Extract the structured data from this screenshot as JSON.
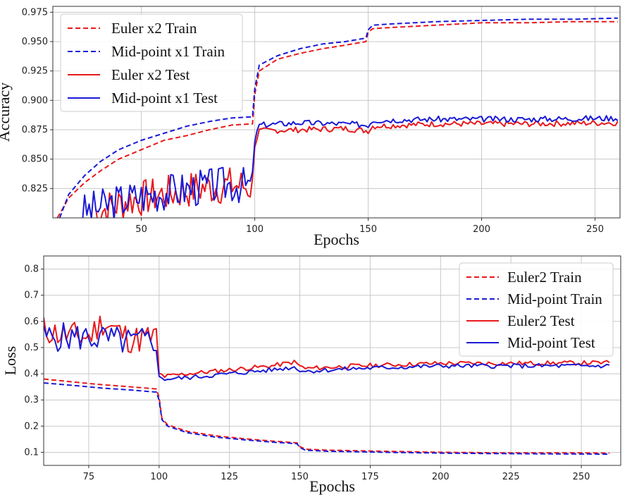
{
  "chart_data": [
    {
      "type": "line",
      "title": "",
      "xlabel": "Epochs",
      "ylabel": "Accuracy",
      "xlim": [
        11,
        261
      ],
      "ylim": [
        0.8,
        0.98
      ],
      "xticks": [
        50,
        100,
        150,
        200,
        250
      ],
      "yticks": [
        0.825,
        0.85,
        0.875,
        0.9,
        0.925,
        0.95,
        0.975
      ],
      "xtick_labels": [
        "50",
        "100",
        "150",
        "200",
        "250"
      ],
      "ytick_labels": [
        "0.825",
        "0.850",
        "0.875",
        "0.900",
        "0.925",
        "0.950",
        "0.975"
      ],
      "grid": true,
      "legend_position": "top-left",
      "series": [
        {
          "name": "Euler x2 Train",
          "color": "#e8191c",
          "dash": true,
          "points": [
            [
              13,
              0.8
            ],
            [
              18,
              0.817
            ],
            [
              25,
              0.83
            ],
            [
              32,
              0.84
            ],
            [
              40,
              0.85
            ],
            [
              50,
              0.858
            ],
            [
              60,
              0.866
            ],
            [
              70,
              0.87
            ],
            [
              80,
              0.875
            ],
            [
              90,
              0.879
            ],
            [
              99,
              0.88
            ],
            [
              100,
              0.905
            ],
            [
              102,
              0.925
            ],
            [
              110,
              0.935
            ],
            [
              120,
              0.94
            ],
            [
              130,
              0.944
            ],
            [
              140,
              0.947
            ],
            [
              149,
              0.95
            ],
            [
              150,
              0.958
            ],
            [
              152,
              0.961
            ],
            [
              160,
              0.962
            ],
            [
              180,
              0.964
            ],
            [
              200,
              0.966
            ],
            [
              220,
              0.966
            ],
            [
              240,
              0.967
            ],
            [
              260,
              0.967
            ]
          ]
        },
        {
          "name": "Mid-point x1 Train",
          "color": "#1a1ad6",
          "dash": true,
          "points": [
            [
              14,
              0.8
            ],
            [
              18,
              0.82
            ],
            [
              25,
              0.836
            ],
            [
              32,
              0.848
            ],
            [
              40,
              0.858
            ],
            [
              50,
              0.866
            ],
            [
              60,
              0.872
            ],
            [
              70,
              0.878
            ],
            [
              80,
              0.882
            ],
            [
              90,
              0.885
            ],
            [
              99,
              0.886
            ],
            [
              100,
              0.91
            ],
            [
              102,
              0.93
            ],
            [
              110,
              0.938
            ],
            [
              120,
              0.944
            ],
            [
              130,
              0.948
            ],
            [
              140,
              0.95
            ],
            [
              149,
              0.953
            ],
            [
              150,
              0.96
            ],
            [
              152,
              0.964
            ],
            [
              160,
              0.965
            ],
            [
              180,
              0.967
            ],
            [
              200,
              0.968
            ],
            [
              220,
              0.969
            ],
            [
              240,
              0.969
            ],
            [
              260,
              0.97
            ]
          ]
        },
        {
          "name": "Euler x2 Test",
          "color": "#e8191c",
          "dash": false,
          "noise": 0.01,
          "seed": 7,
          "points": [
            [
              30,
              0.805
            ],
            [
              45,
              0.815
            ],
            [
              60,
              0.82
            ],
            [
              75,
              0.825
            ],
            [
              90,
              0.828
            ],
            [
              99,
              0.826
            ],
            [
              100,
              0.862
            ],
            [
              102,
              0.874
            ],
            [
              120,
              0.875
            ],
            [
              140,
              0.876
            ],
            [
              150,
              0.874
            ],
            [
              152,
              0.878
            ],
            [
              180,
              0.88
            ],
            [
              220,
              0.88
            ],
            [
              260,
              0.881
            ]
          ]
        },
        {
          "name": "Mid-point x1 Test",
          "color": "#1a1ad6",
          "dash": false,
          "noise": 0.01,
          "seed": 3,
          "points": [
            [
              24,
              0.805
            ],
            [
              45,
              0.817
            ],
            [
              60,
              0.822
            ],
            [
              75,
              0.826
            ],
            [
              90,
              0.829
            ],
            [
              99,
              0.827
            ],
            [
              100,
              0.866
            ],
            [
              102,
              0.879
            ],
            [
              120,
              0.881
            ],
            [
              140,
              0.88
            ],
            [
              150,
              0.879
            ],
            [
              152,
              0.883
            ],
            [
              180,
              0.884
            ],
            [
              220,
              0.884
            ],
            [
              260,
              0.885
            ]
          ]
        }
      ]
    },
    {
      "type": "line",
      "title": "",
      "xlabel": "Epochs",
      "ylabel": "Loss",
      "xlim": [
        59,
        264
      ],
      "ylim": [
        0.05,
        0.85
      ],
      "xticks": [
        75,
        100,
        125,
        150,
        175,
        200,
        225,
        250
      ],
      "yticks": [
        0.1,
        0.2,
        0.3,
        0.4,
        0.5,
        0.6,
        0.7,
        0.8
      ],
      "xtick_labels": [
        "75",
        "100",
        "125",
        "150",
        "175",
        "200",
        "225",
        "250"
      ],
      "ytick_labels": [
        "0.1",
        "0.2",
        "0.3",
        "0.4",
        "0.5",
        "0.6",
        "0.7",
        "0.8"
      ],
      "grid": true,
      "legend_position": "top-right",
      "series": [
        {
          "name": "Euler2 Train",
          "color": "#e8191c",
          "dash": true,
          "points": [
            [
              59,
              0.38
            ],
            [
              70,
              0.368
            ],
            [
              80,
              0.358
            ],
            [
              90,
              0.35
            ],
            [
              99,
              0.342
            ],
            [
              100,
              0.31
            ],
            [
              101,
              0.23
            ],
            [
              103,
              0.205
            ],
            [
              110,
              0.18
            ],
            [
              120,
              0.163
            ],
            [
              130,
              0.152
            ],
            [
              140,
              0.143
            ],
            [
              149,
              0.136
            ],
            [
              150,
              0.122
            ],
            [
              152,
              0.112
            ],
            [
              160,
              0.108
            ],
            [
              180,
              0.104
            ],
            [
              200,
              0.1
            ],
            [
              220,
              0.098
            ],
            [
              240,
              0.098
            ],
            [
              260,
              0.097
            ]
          ]
        },
        {
          "name": "Mid-point Train",
          "color": "#1a1ad6",
          "dash": true,
          "points": [
            [
              59,
              0.365
            ],
            [
              70,
              0.355
            ],
            [
              80,
              0.345
            ],
            [
              90,
              0.338
            ],
            [
              99,
              0.33
            ],
            [
              100,
              0.3
            ],
            [
              101,
              0.225
            ],
            [
              103,
              0.2
            ],
            [
              110,
              0.175
            ],
            [
              120,
              0.158
            ],
            [
              130,
              0.148
            ],
            [
              140,
              0.139
            ],
            [
              149,
              0.133
            ],
            [
              150,
              0.118
            ],
            [
              152,
              0.108
            ],
            [
              160,
              0.104
            ],
            [
              180,
              0.1
            ],
            [
              200,
              0.097
            ],
            [
              220,
              0.095
            ],
            [
              240,
              0.094
            ],
            [
              260,
              0.093
            ]
          ]
        },
        {
          "name": "Euler2 Test",
          "color": "#e8191c",
          "dash": false,
          "noise": 0.035,
          "seed": 11,
          "points": [
            [
              59,
              0.57
            ],
            [
              65,
              0.55
            ],
            [
              75,
              0.54
            ],
            [
              80,
              0.6
            ],
            [
              90,
              0.53
            ],
            [
              99,
              0.54
            ],
            [
              100,
              0.4
            ],
            [
              102,
              0.39
            ],
            [
              110,
              0.4
            ],
            [
              120,
              0.41
            ],
            [
              130,
              0.42
            ],
            [
              140,
              0.43
            ],
            [
              148,
              0.445
            ],
            [
              150,
              0.43
            ],
            [
              152,
              0.42
            ],
            [
              170,
              0.43
            ],
            [
              200,
              0.44
            ],
            [
              230,
              0.44
            ],
            [
              260,
              0.442
            ]
          ]
        },
        {
          "name": "Mid-point Test",
          "color": "#1a1ad6",
          "dash": false,
          "noise": 0.035,
          "seed": 5,
          "points": [
            [
              59,
              0.54
            ],
            [
              65,
              0.54
            ],
            [
              75,
              0.54
            ],
            [
              90,
              0.52
            ],
            [
              99,
              0.53
            ],
            [
              100,
              0.385
            ],
            [
              102,
              0.38
            ],
            [
              110,
              0.385
            ],
            [
              120,
              0.395
            ],
            [
              130,
              0.405
            ],
            [
              140,
              0.415
            ],
            [
              148,
              0.425
            ],
            [
              150,
              0.415
            ],
            [
              152,
              0.41
            ],
            [
              170,
              0.42
            ],
            [
              200,
              0.43
            ],
            [
              230,
              0.43
            ],
            [
              260,
              0.43
            ]
          ]
        }
      ]
    }
  ]
}
